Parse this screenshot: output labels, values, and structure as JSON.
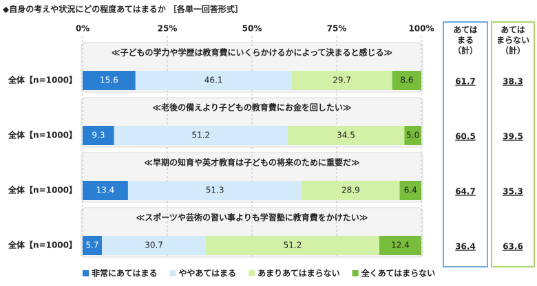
{
  "chart_data": {
    "type": "bar",
    "orientation": "horizontal",
    "stacked": true,
    "title": "◆自身の考えや状況にどの程度あてはまるか ［各単一回答形式］",
    "statements": [
      "≪子どもの学力や学歴は教育費にいくらかけるかによって決まると感じる≫",
      "≪老後の備えより子どもの教育費にお金を回したい≫",
      "≪早期の知育や英才教育は子どもの将来のために重要だ≫",
      "≪スポーツや芸術の習い事よりも学習塾に教育費をかけたい≫"
    ],
    "categories": [
      "全体【n=1000】",
      "全体【n=1000】",
      "全体【n=1000】",
      "全体【n=1000】"
    ],
    "series": [
      {
        "name": "非常にあてはまる",
        "color": "#2b7fd2",
        "text_color": "#ffffff",
        "values": [
          15.6,
          9.3,
          13.4,
          5.7
        ]
      },
      {
        "name": "ややあてはまる",
        "color": "#d3eafa",
        "text_color": "#222222",
        "values": [
          46.1,
          51.2,
          51.3,
          30.7
        ]
      },
      {
        "name": "あまりあてはまらない",
        "color": "#d2f0a6",
        "text_color": "#222222",
        "values": [
          29.7,
          34.5,
          28.9,
          51.2
        ]
      },
      {
        "name": "全くあてはまらない",
        "color": "#79bd3c",
        "text_color": "#222222",
        "values": [
          8.6,
          5.0,
          6.4,
          12.4
        ],
        "value_labels": [
          "8.6",
          "5.0",
          "6.4",
          "12.4"
        ]
      }
    ],
    "xlim": [
      0,
      100
    ],
    "xticks": [
      {
        "value": 0,
        "label": "0%"
      },
      {
        "value": 25,
        "label": "25%"
      },
      {
        "value": 50,
        "label": "50%"
      },
      {
        "value": 75,
        "label": "75%"
      },
      {
        "value": 100,
        "label": "100%"
      }
    ],
    "grid": true,
    "legend": "bottom",
    "summary": [
      {
        "header": [
          "あては",
          "まる",
          "（計）"
        ],
        "color": "#3b8fdc",
        "values": [
          61.7,
          60.5,
          64.7,
          36.4
        ]
      },
      {
        "header": [
          "あては",
          "まらない",
          "（計）"
        ],
        "color": "#8cc63f",
        "values": [
          38.3,
          39.5,
          35.3,
          63.6
        ]
      }
    ]
  }
}
